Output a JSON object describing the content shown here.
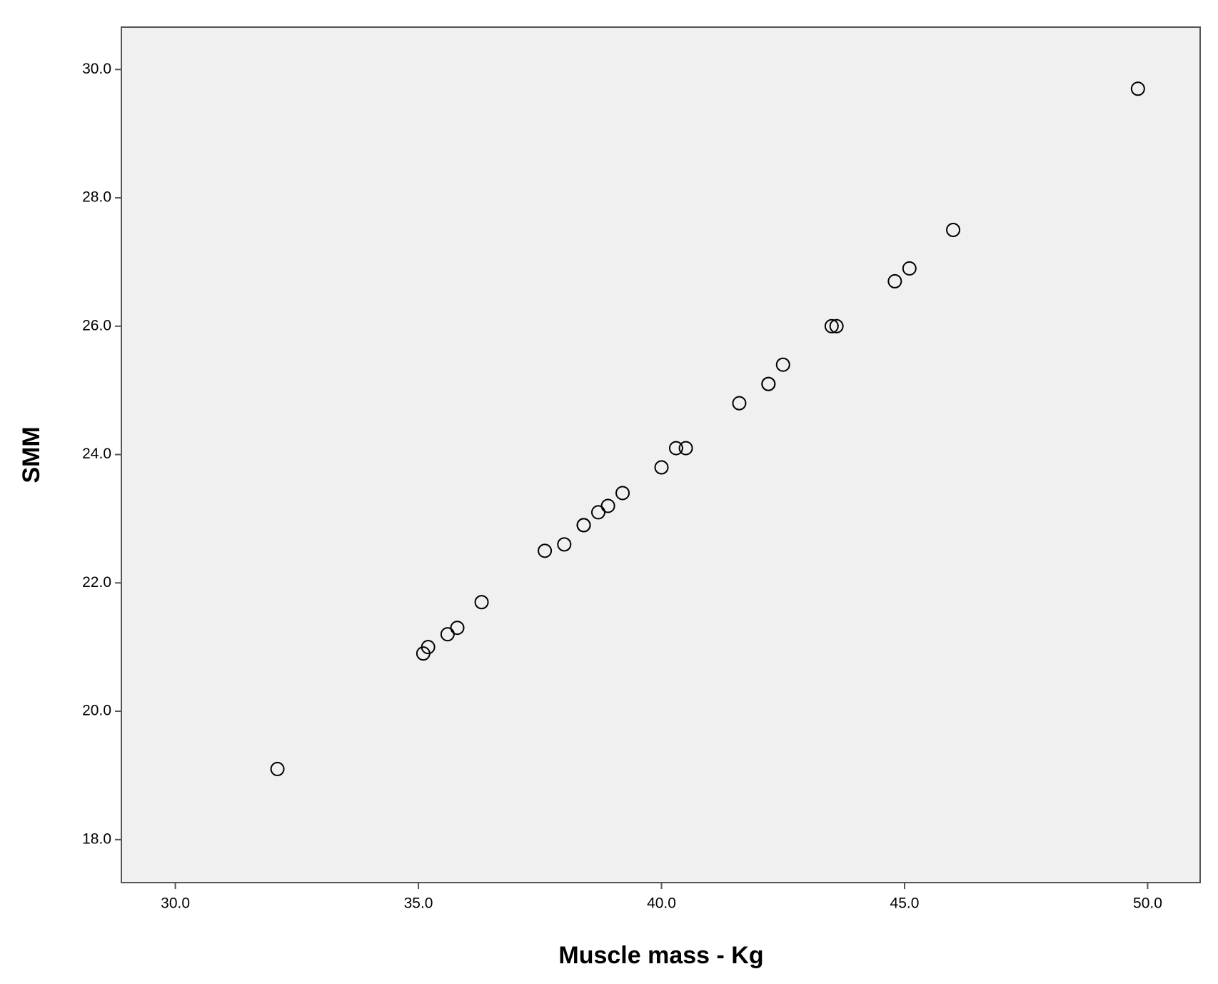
{
  "chart_data": {
    "type": "scatter",
    "x_label": "Muscle mass - Kg",
    "y_label": "SMM",
    "x": [
      32.1,
      35.1,
      35.2,
      35.6,
      35.8,
      36.3,
      37.6,
      38.0,
      38.4,
      38.4,
      38.7,
      38.9,
      39.2,
      40.0,
      40.3,
      40.5,
      41.6,
      42.2,
      42.2,
      42.5,
      43.5,
      43.6,
      44.8,
      45.1,
      46.0,
      49.8
    ],
    "values": [
      19.1,
      20.9,
      21.0,
      21.2,
      21.3,
      21.7,
      22.5,
      22.6,
      22.9,
      22.9,
      23.1,
      23.2,
      23.4,
      23.8,
      24.1,
      24.1,
      24.8,
      25.1,
      25.1,
      25.4,
      26.0,
      26.0,
      26.7,
      26.9,
      27.5,
      29.7
    ],
    "color": "#000000",
    "xlim": [
      28.89,
      51.08
    ],
    "ylim": [
      17.33,
      30.66
    ],
    "xticks": [
      {
        "value": 30,
        "label": "30.0"
      },
      {
        "value": 35,
        "label": "35.0"
      },
      {
        "value": 40,
        "label": "40.0"
      },
      {
        "value": 45,
        "label": "45.0"
      },
      {
        "value": 50,
        "label": "50.0"
      }
    ],
    "yticks": [
      {
        "value": 18,
        "label": "18.0"
      },
      {
        "value": 20,
        "label": "20.0"
      },
      {
        "value": 22,
        "label": "22.0"
      },
      {
        "value": 24,
        "label": "24.0"
      },
      {
        "value": 26,
        "label": "26.0"
      },
      {
        "value": 28,
        "label": "28.0"
      },
      {
        "value": 30,
        "label": "30.0"
      }
    ],
    "grid": false
  }
}
